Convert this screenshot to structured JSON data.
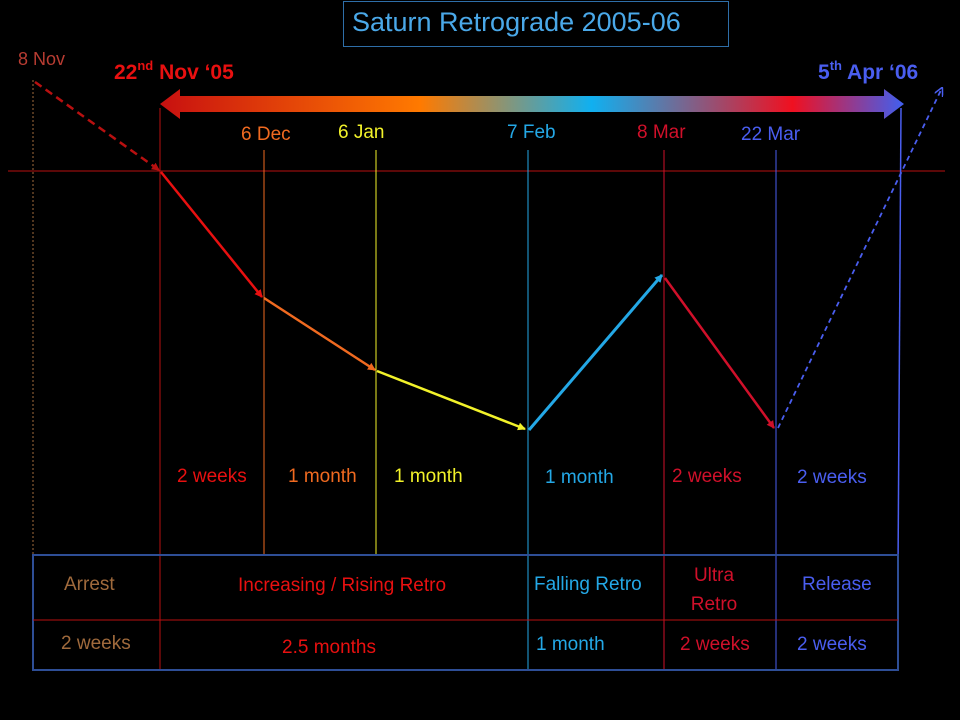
{
  "title": "Saturn Retrograde 2005-06",
  "colors": {
    "background": "#000000",
    "title": "#4aa8e8",
    "red": "#e81010",
    "orange": "#f06a20",
    "yellow": "#f2f22a",
    "cyan": "#24a8e6",
    "crimson": "#d0102a",
    "blue": "#4a5ef0",
    "brown": "#a06a3c",
    "dark_red": "#b81010"
  },
  "start_date": {
    "day": "22",
    "suffix": "nd",
    "rest": " Nov ‘05"
  },
  "end_date": {
    "day": "5",
    "suffix": "th",
    "rest": " Apr ‘06"
  },
  "pre_date": "8 Nov",
  "dates": [
    "6 Dec",
    "6 Jan",
    "7 Feb",
    "8 Mar",
    "22 Mar"
  ],
  "durations": [
    "2 weeks",
    "1 month",
    "1 month",
    "1 month",
    "2 weeks",
    "2 weeks"
  ],
  "phases": [
    {
      "name": "Arrest",
      "duration": "2 weeks"
    },
    {
      "name": "Increasing / Rising Retro",
      "duration": "2.5 months"
    },
    {
      "name": "Falling Retro",
      "duration": "1 month"
    },
    {
      "name": "Ultra Retro",
      "name_lines": [
        "Ultra",
        "Retro"
      ],
      "duration": "2 weeks"
    },
    {
      "name": "Release",
      "duration": "2 weeks"
    }
  ]
}
